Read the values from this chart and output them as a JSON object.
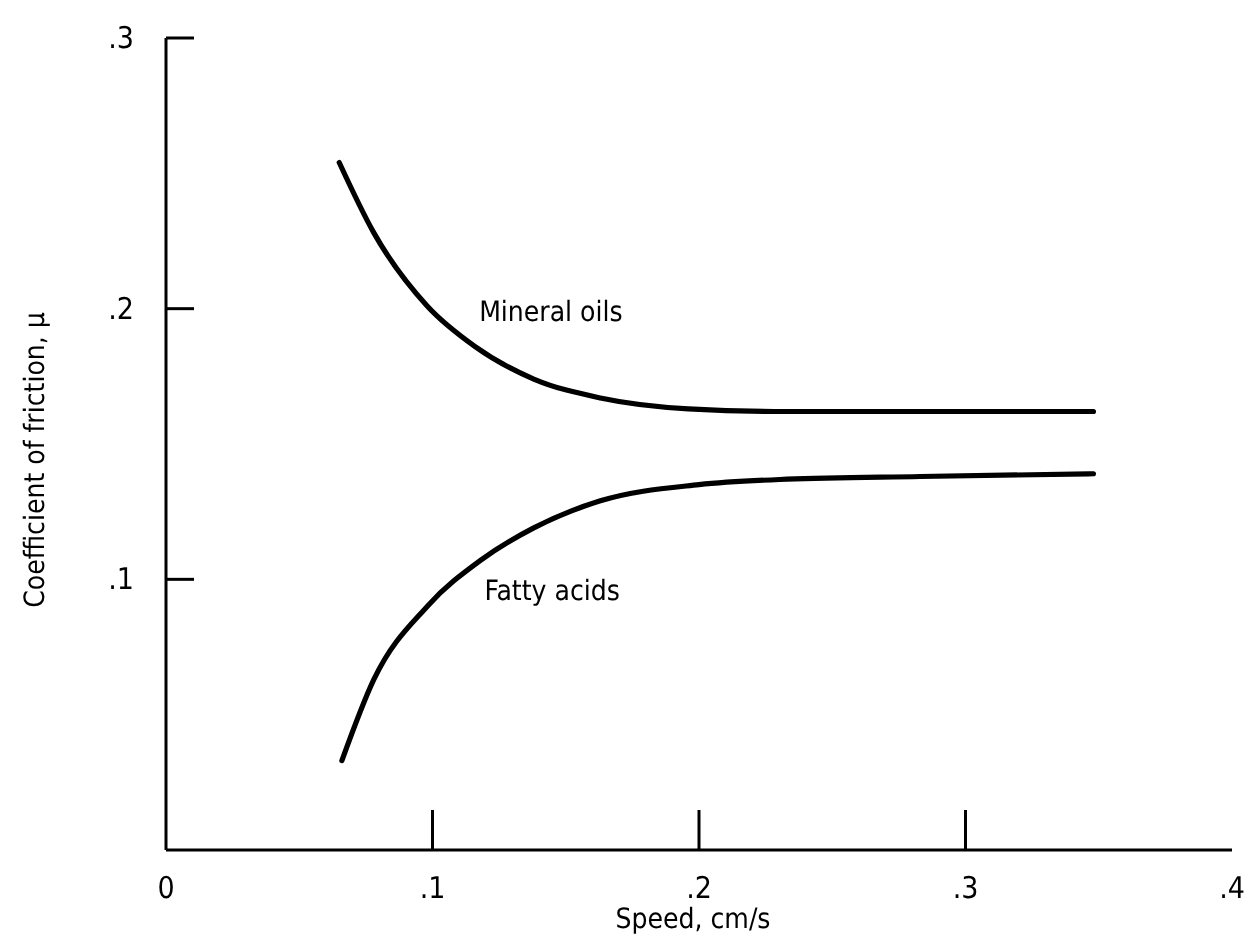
{
  "chart_data": {
    "type": "line",
    "xlabel": "Speed, cm/s",
    "ylabel": "Coefficient of friction, μ",
    "xlim": [
      0,
      0.4
    ],
    "ylim": [
      0,
      0.3
    ],
    "xticks": [
      0,
      {
        "value": 0.1,
        "label": ".1"
      },
      {
        "value": 0.2,
        "label": ".2"
      },
      {
        "value": 0.3,
        "label": ".3"
      },
      {
        "value": 0.4,
        "label": ".4"
      }
    ],
    "yticks": [
      {
        "value": 0.1,
        "label": ".1"
      },
      {
        "value": 0.2,
        "label": ".2"
      },
      {
        "value": 0.3,
        "label": ".3"
      }
    ],
    "grid": false,
    "marker": "none",
    "line_style": "solid",
    "series": [
      {
        "name": "Mineral oils",
        "color": "#000000",
        "x": [
          0.065,
          0.078,
          0.098,
          0.116,
          0.138,
          0.163,
          0.196,
          0.233,
          0.283,
          0.348
        ],
        "values": [
          0.254,
          0.228,
          0.201,
          0.186,
          0.174,
          0.167,
          0.163,
          0.162,
          0.162,
          0.162
        ]
      },
      {
        "name": "Fatty acids",
        "color": "#000000",
        "x": [
          0.066,
          0.078,
          0.098,
          0.118,
          0.138,
          0.163,
          0.2,
          0.233,
          0.283,
          0.348
        ],
        "values": [
          0.033,
          0.063,
          0.09,
          0.107,
          0.119,
          0.129,
          0.135,
          0.137,
          0.138,
          0.139
        ]
      }
    ]
  }
}
